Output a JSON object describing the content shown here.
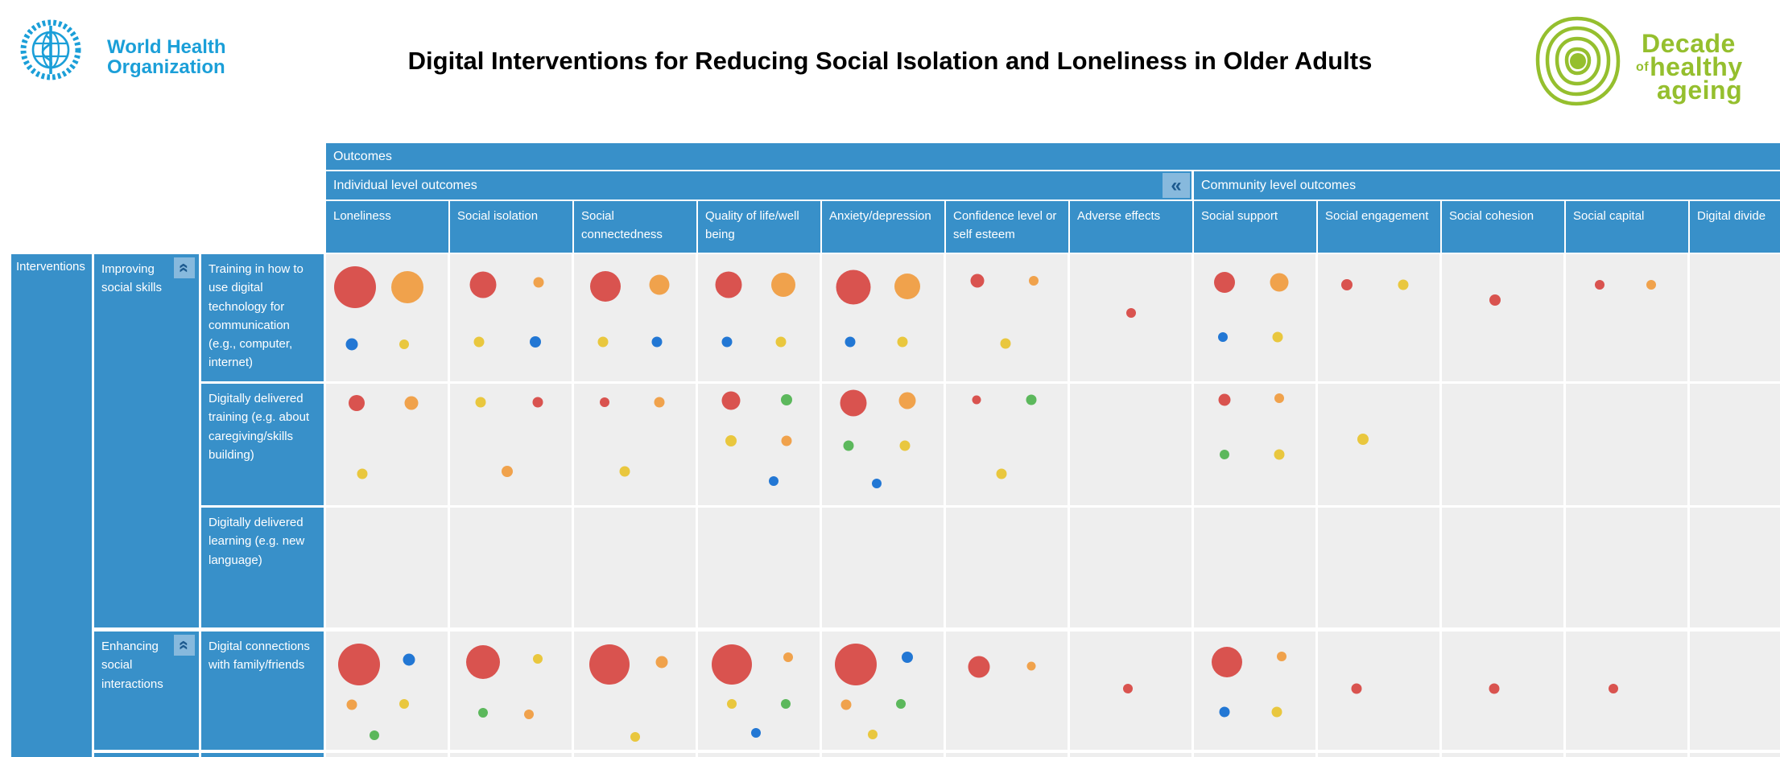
{
  "header": {
    "who": {
      "line1": "World Health",
      "line2": "Organization"
    },
    "decade": {
      "line1": "Decade",
      "of": "of",
      "line2": "healthy",
      "line3": "ageing"
    }
  },
  "ui": {
    "collapse_icon": "«"
  },
  "chart_data": {
    "type": "bubble-matrix",
    "title": "Digital Interventions for Reducing Social Isolation and Loneliness in Older Adults",
    "outcomes_label": "Outcomes",
    "interventions_label": "Interventions",
    "column_groups": [
      {
        "id": "individual",
        "label": "Individual level outcomes"
      },
      {
        "id": "community",
        "label": "Community level outcomes"
      }
    ],
    "bubble_colors": {
      "red": "#d9534f",
      "orange": "#f0a24c",
      "blue": "#2277d4",
      "yellow": "#e9c73e",
      "green": "#5cb85c"
    },
    "columns": [
      {
        "id": "loneliness",
        "label": "Loneliness",
        "group": "individual"
      },
      {
        "id": "social-isolation",
        "label": "Social isolation",
        "group": "individual"
      },
      {
        "id": "social-connectedness",
        "label": "Social connectedness",
        "group": "individual"
      },
      {
        "id": "quality-of-life",
        "label": "Quality of life/well being",
        "group": "individual"
      },
      {
        "id": "anxiety-depression",
        "label": "Anxiety/depression",
        "group": "individual"
      },
      {
        "id": "confidence-self-esteem",
        "label": "Confidence level or self esteem",
        "group": "individual"
      },
      {
        "id": "adverse-effects",
        "label": "Adverse effects",
        "group": "individual"
      },
      {
        "id": "social-support",
        "label": "Social support",
        "group": "community"
      },
      {
        "id": "social-engagement",
        "label": "Social engagement",
        "group": "community"
      },
      {
        "id": "social-cohesion",
        "label": "Social cohesion",
        "group": "community"
      },
      {
        "id": "social-capital",
        "label": "Social capital",
        "group": "community"
      },
      {
        "id": "digital-divide",
        "label": "Digital divide",
        "group": "community"
      }
    ],
    "row_groups": [
      {
        "label": "Improving social skills",
        "rows": [
          {
            "label": "Training in how to use digital technology for communication (e.g., computer, internet)",
            "cells": [
              [
                {
                  "c": "red",
                  "d": 52,
                  "x": 24,
                  "y": 26
                },
                {
                  "c": "orange",
                  "d": 40,
                  "x": 67,
                  "y": 26
                },
                {
                  "c": "blue",
                  "d": 15,
                  "x": 21,
                  "y": 71
                },
                {
                  "c": "yellow",
                  "d": 12,
                  "x": 64,
                  "y": 71
                }
              ],
              [
                {
                  "c": "red",
                  "d": 33,
                  "x": 27,
                  "y": 24
                },
                {
                  "c": "orange",
                  "d": 13,
                  "x": 73,
                  "y": 22
                },
                {
                  "c": "yellow",
                  "d": 13,
                  "x": 24,
                  "y": 69
                },
                {
                  "c": "blue",
                  "d": 14,
                  "x": 70,
                  "y": 69
                }
              ],
              [
                {
                  "c": "red",
                  "d": 38,
                  "x": 26,
                  "y": 25
                },
                {
                  "c": "orange",
                  "d": 25,
                  "x": 70,
                  "y": 24
                },
                {
                  "c": "yellow",
                  "d": 13,
                  "x": 24,
                  "y": 69
                },
                {
                  "c": "blue",
                  "d": 13,
                  "x": 68,
                  "y": 69
                }
              ],
              [
                {
                  "c": "red",
                  "d": 33,
                  "x": 25,
                  "y": 24
                },
                {
                  "c": "orange",
                  "d": 30,
                  "x": 70,
                  "y": 24
                },
                {
                  "c": "blue",
                  "d": 13,
                  "x": 24,
                  "y": 69
                },
                {
                  "c": "yellow",
                  "d": 13,
                  "x": 68,
                  "y": 69
                }
              ],
              [
                {
                  "c": "red",
                  "d": 43,
                  "x": 26,
                  "y": 26
                },
                {
                  "c": "orange",
                  "d": 32,
                  "x": 70,
                  "y": 25
                },
                {
                  "c": "blue",
                  "d": 13,
                  "x": 23,
                  "y": 69
                },
                {
                  "c": "yellow",
                  "d": 13,
                  "x": 66,
                  "y": 69
                }
              ],
              [
                {
                  "c": "red",
                  "d": 17,
                  "x": 26,
                  "y": 21
                },
                {
                  "c": "orange",
                  "d": 12,
                  "x": 72,
                  "y": 21
                },
                {
                  "c": "yellow",
                  "d": 13,
                  "x": 49,
                  "y": 70
                }
              ],
              [
                {
                  "c": "red",
                  "d": 12,
                  "x": 50,
                  "y": 46
                }
              ],
              [
                {
                  "c": "red",
                  "d": 26,
                  "x": 25,
                  "y": 22
                },
                {
                  "c": "orange",
                  "d": 23,
                  "x": 70,
                  "y": 22
                },
                {
                  "c": "blue",
                  "d": 12,
                  "x": 24,
                  "y": 65
                },
                {
                  "c": "yellow",
                  "d": 13,
                  "x": 69,
                  "y": 65
                }
              ],
              [
                {
                  "c": "red",
                  "d": 14,
                  "x": 24,
                  "y": 24
                },
                {
                  "c": "yellow",
                  "d": 13,
                  "x": 70,
                  "y": 24
                }
              ],
              [
                {
                  "c": "red",
                  "d": 14,
                  "x": 44,
                  "y": 36
                }
              ],
              [
                {
                  "c": "red",
                  "d": 12,
                  "x": 28,
                  "y": 24
                },
                {
                  "c": "orange",
                  "d": 12,
                  "x": 70,
                  "y": 24
                }
              ],
              []
            ]
          },
          {
            "label": "Digitally delivered training (e.g. about caregiving/skills building)",
            "cells": [
              [
                {
                  "c": "red",
                  "d": 20,
                  "x": 25,
                  "y": 16
                },
                {
                  "c": "orange",
                  "d": 17,
                  "x": 70,
                  "y": 16
                },
                {
                  "c": "yellow",
                  "d": 13,
                  "x": 30,
                  "y": 74
                }
              ],
              [
                {
                  "c": "yellow",
                  "d": 13,
                  "x": 25,
                  "y": 15
                },
                {
                  "c": "red",
                  "d": 13,
                  "x": 72,
                  "y": 15
                },
                {
                  "c": "orange",
                  "d": 14,
                  "x": 47,
                  "y": 72
                }
              ],
              [
                {
                  "c": "red",
                  "d": 12,
                  "x": 25,
                  "y": 15
                },
                {
                  "c": "orange",
                  "d": 13,
                  "x": 70,
                  "y": 15
                },
                {
                  "c": "yellow",
                  "d": 13,
                  "x": 42,
                  "y": 72
                }
              ],
              [
                {
                  "c": "red",
                  "d": 23,
                  "x": 27,
                  "y": 14
                },
                {
                  "c": "green",
                  "d": 14,
                  "x": 73,
                  "y": 13
                },
                {
                  "c": "yellow",
                  "d": 14,
                  "x": 27,
                  "y": 47
                },
                {
                  "c": "orange",
                  "d": 13,
                  "x": 73,
                  "y": 47
                },
                {
                  "c": "blue",
                  "d": 12,
                  "x": 62,
                  "y": 80
                }
              ],
              [
                {
                  "c": "red",
                  "d": 33,
                  "x": 26,
                  "y": 16
                },
                {
                  "c": "orange",
                  "d": 21,
                  "x": 70,
                  "y": 14
                },
                {
                  "c": "green",
                  "d": 13,
                  "x": 22,
                  "y": 51
                },
                {
                  "c": "yellow",
                  "d": 13,
                  "x": 68,
                  "y": 51
                },
                {
                  "c": "blue",
                  "d": 12,
                  "x": 45,
                  "y": 82
                }
              ],
              [
                {
                  "c": "red",
                  "d": 11,
                  "x": 25,
                  "y": 13
                },
                {
                  "c": "green",
                  "d": 13,
                  "x": 70,
                  "y": 13
                },
                {
                  "c": "yellow",
                  "d": 13,
                  "x": 46,
                  "y": 74
                }
              ],
              [],
              [
                {
                  "c": "red",
                  "d": 15,
                  "x": 25,
                  "y": 13
                },
                {
                  "c": "orange",
                  "d": 12,
                  "x": 70,
                  "y": 12
                },
                {
                  "c": "green",
                  "d": 12,
                  "x": 25,
                  "y": 58
                },
                {
                  "c": "yellow",
                  "d": 13,
                  "x": 70,
                  "y": 58
                }
              ],
              [
                {
                  "c": "yellow",
                  "d": 14,
                  "x": 37,
                  "y": 46
                }
              ],
              [],
              [],
              []
            ]
          },
          {
            "label": "Digitally delivered learning (e.g. new language)",
            "cells": [
              [],
              [],
              [],
              [],
              [],
              [],
              [],
              [],
              [],
              [],
              [],
              []
            ]
          }
        ]
      },
      {
        "label": "Enhancing social interactions",
        "rows": [
          {
            "label": "Digital connections with family/friends",
            "cells": [
              [
                {
                  "c": "red",
                  "d": 52,
                  "x": 27,
                  "y": 28
                },
                {
                  "c": "blue",
                  "d": 15,
                  "x": 68,
                  "y": 24
                },
                {
                  "c": "orange",
                  "d": 13,
                  "x": 21,
                  "y": 62
                },
                {
                  "c": "yellow",
                  "d": 12,
                  "x": 64,
                  "y": 61
                },
                {
                  "c": "green",
                  "d": 12,
                  "x": 40,
                  "y": 88
                }
              ],
              [
                {
                  "c": "red",
                  "d": 42,
                  "x": 27,
                  "y": 26
                },
                {
                  "c": "yellow",
                  "d": 12,
                  "x": 72,
                  "y": 23
                },
                {
                  "c": "green",
                  "d": 12,
                  "x": 27,
                  "y": 69
                },
                {
                  "c": "orange",
                  "d": 12,
                  "x": 65,
                  "y": 70
                }
              ],
              [
                {
                  "c": "red",
                  "d": 50,
                  "x": 29,
                  "y": 28
                },
                {
                  "c": "orange",
                  "d": 15,
                  "x": 72,
                  "y": 26
                },
                {
                  "c": "yellow",
                  "d": 12,
                  "x": 50,
                  "y": 89
                }
              ],
              [
                {
                  "c": "red",
                  "d": 50,
                  "x": 28,
                  "y": 28
                },
                {
                  "c": "orange",
                  "d": 12,
                  "x": 74,
                  "y": 22
                },
                {
                  "c": "yellow",
                  "d": 12,
                  "x": 28,
                  "y": 61
                },
                {
                  "c": "green",
                  "d": 12,
                  "x": 72,
                  "y": 61
                },
                {
                  "c": "blue",
                  "d": 12,
                  "x": 48,
                  "y": 86
                }
              ],
              [
                {
                  "c": "red",
                  "d": 52,
                  "x": 28,
                  "y": 28
                },
                {
                  "c": "blue",
                  "d": 14,
                  "x": 70,
                  "y": 22
                },
                {
                  "c": "orange",
                  "d": 13,
                  "x": 20,
                  "y": 62
                },
                {
                  "c": "green",
                  "d": 12,
                  "x": 65,
                  "y": 61
                },
                {
                  "c": "yellow",
                  "d": 12,
                  "x": 42,
                  "y": 87
                }
              ],
              [
                {
                  "c": "red",
                  "d": 27,
                  "x": 27,
                  "y": 30
                },
                {
                  "c": "orange",
                  "d": 11,
                  "x": 70,
                  "y": 29
                }
              ],
              [
                {
                  "c": "red",
                  "d": 12,
                  "x": 48,
                  "y": 48
                }
              ],
              [
                {
                  "c": "red",
                  "d": 38,
                  "x": 27,
                  "y": 26
                },
                {
                  "c": "orange",
                  "d": 12,
                  "x": 72,
                  "y": 21
                },
                {
                  "c": "blue",
                  "d": 13,
                  "x": 25,
                  "y": 68
                },
                {
                  "c": "yellow",
                  "d": 13,
                  "x": 68,
                  "y": 68
                }
              ],
              [
                {
                  "c": "red",
                  "d": 13,
                  "x": 32,
                  "y": 48
                }
              ],
              [
                {
                  "c": "red",
                  "d": 13,
                  "x": 43,
                  "y": 48
                }
              ],
              [
                {
                  "c": "red",
                  "d": 12,
                  "x": 39,
                  "y": 48
                }
              ],
              []
            ]
          }
        ]
      }
    ]
  }
}
